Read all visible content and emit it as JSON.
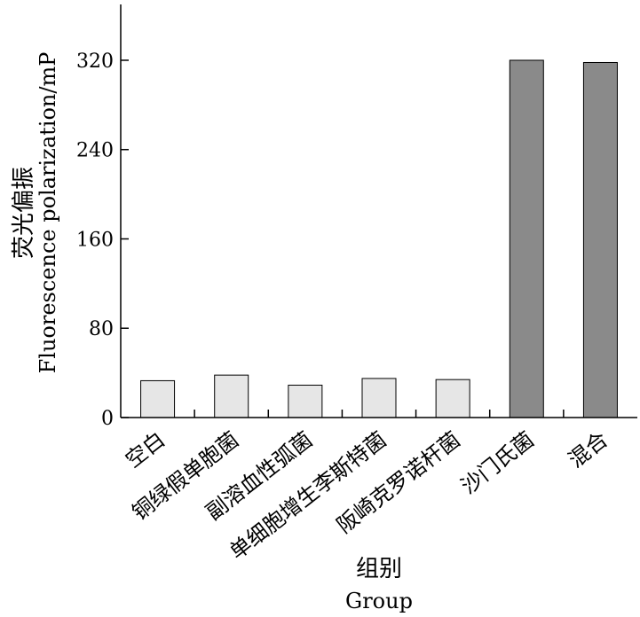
{
  "chart_data": {
    "type": "bar",
    "categories": [
      "空白",
      "铜绿假单胞菌",
      "副溶血性弧菌",
      "单细胞增生李斯特菌",
      "阪崎克罗诺杆菌",
      "沙门氏菌",
      "混合"
    ],
    "values": [
      33,
      38,
      29,
      35,
      34,
      320,
      318
    ],
    "bar_colors": [
      "#e6e6e6",
      "#e6e6e6",
      "#e6e6e6",
      "#e6e6e6",
      "#e6e6e6",
      "#8a8a8a",
      "#8a8a8a"
    ],
    "ylim": [
      0,
      370
    ],
    "yticks": [
      0,
      80,
      160,
      240,
      320
    ],
    "ytick_labels": [
      "0",
      "80",
      "160",
      "240",
      "320"
    ],
    "ylabel_cn": "荧光偏振",
    "ylabel": "Fluorescence polarization/mP",
    "xlabel_cn": "组别",
    "xlabel": "Group",
    "grid": false,
    "legend": "none"
  }
}
